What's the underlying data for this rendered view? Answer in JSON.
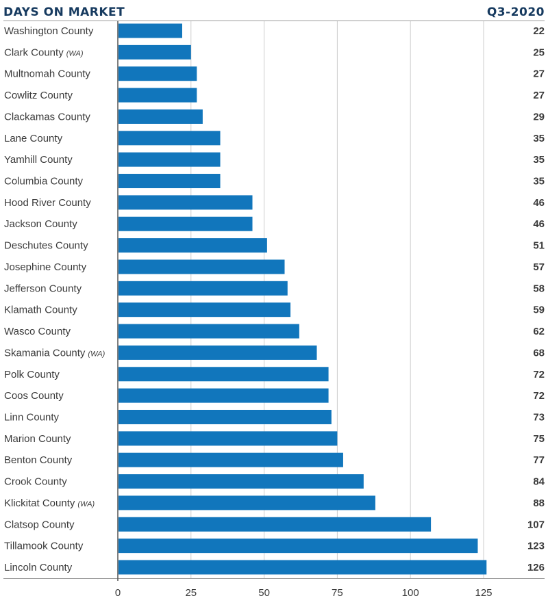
{
  "chart_data": {
    "type": "bar",
    "orientation": "horizontal",
    "title": "DAYS ON MARKET",
    "subtitle": "Q3-2020",
    "categories": [
      "Washington County",
      "Clark County",
      "Multnomah County",
      "Cowlitz County",
      "Clackamas County",
      "Lane County",
      "Yamhill County",
      "Columbia County",
      "Hood River County",
      "Jackson County",
      "Deschutes County",
      "Josephine County",
      "Jefferson County",
      "Klamath County",
      "Wasco County",
      "Skamania County",
      "Polk County",
      "Coos County",
      "Linn County",
      "Marion County",
      "Benton County",
      "Crook County",
      "Klickitat County",
      "Clatsop County",
      "Tillamook County",
      "Lincoln County"
    ],
    "category_notes": [
      "",
      "(WA)",
      "",
      "",
      "",
      "",
      "",
      "",
      "",
      "",
      "",
      "",
      "",
      "",
      "",
      "(WA)",
      "",
      "",
      "",
      "",
      "",
      "",
      "(WA)",
      "",
      "",
      ""
    ],
    "values": [
      22,
      25,
      27,
      27,
      29,
      35,
      35,
      35,
      46,
      46,
      51,
      57,
      58,
      59,
      62,
      68,
      72,
      72,
      73,
      75,
      77,
      84,
      88,
      107,
      123,
      126
    ],
    "xticks": [
      0,
      25,
      50,
      75,
      100,
      125
    ],
    "xlim": [
      0,
      145
    ],
    "grid": true,
    "xlabel": "",
    "ylabel": "",
    "colors": {
      "bar": "#1176bc",
      "title": "#163a5f",
      "grid": "#cccccc",
      "axis": "#555555"
    }
  }
}
